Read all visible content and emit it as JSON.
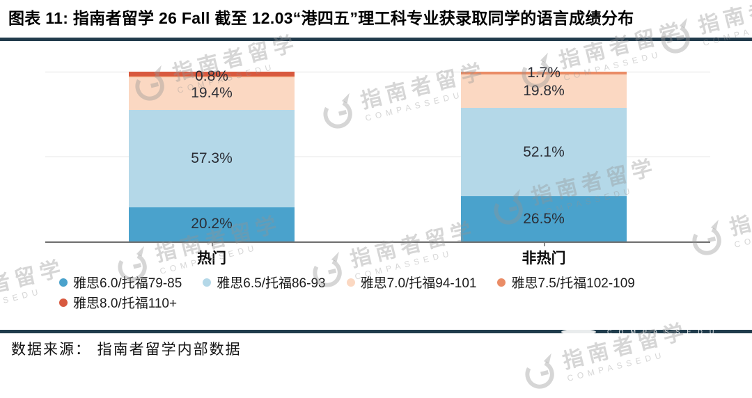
{
  "page": {
    "title": "图表 11:  指南者留学 26 Fall 截至 12.03“港四五”理工科专业获录取同学的语言成绩分布",
    "source_note": "数据来源： 指南者留学内部数据"
  },
  "watermark": {
    "cn": "指南者留学",
    "en": "COMPASSEDU"
  },
  "chart_data": {
    "type": "bar",
    "subtype": "stacked-percentage-column",
    "title": "",
    "xlabel": "",
    "ylabel": "",
    "ylim": [
      0,
      100
    ],
    "grid": true,
    "gridline_values": [
      50,
      100
    ],
    "legend_position": "bottom",
    "categories": [
      "热门",
      "非热门"
    ],
    "series": [
      {
        "name": "雅思6.0/托福79-85",
        "color": "#4aa2cc",
        "values": [
          20.2,
          26.5
        ],
        "labels": [
          "20.2%",
          "26.5%"
        ]
      },
      {
        "name": "雅思6.5/托福86-93",
        "color": "#b4d8e8",
        "values": [
          57.3,
          52.1
        ],
        "labels": [
          "57.3%",
          "52.1%"
        ]
      },
      {
        "name": "雅思7.0/托福94-101",
        "color": "#fbd8c2",
        "values": [
          19.4,
          19.8
        ],
        "labels": [
          "19.4%",
          "19.8%"
        ]
      },
      {
        "name": "雅思7.5/托福102-109",
        "color": "#ea8c66",
        "values": [
          0.8,
          1.7
        ],
        "labels": [
          "0.8%",
          "1.7%"
        ]
      },
      {
        "name": "雅思8.0/托福110+",
        "color": "#d8593f",
        "values": [
          2.3,
          0
        ],
        "labels": [
          "",
          ""
        ]
      }
    ]
  }
}
